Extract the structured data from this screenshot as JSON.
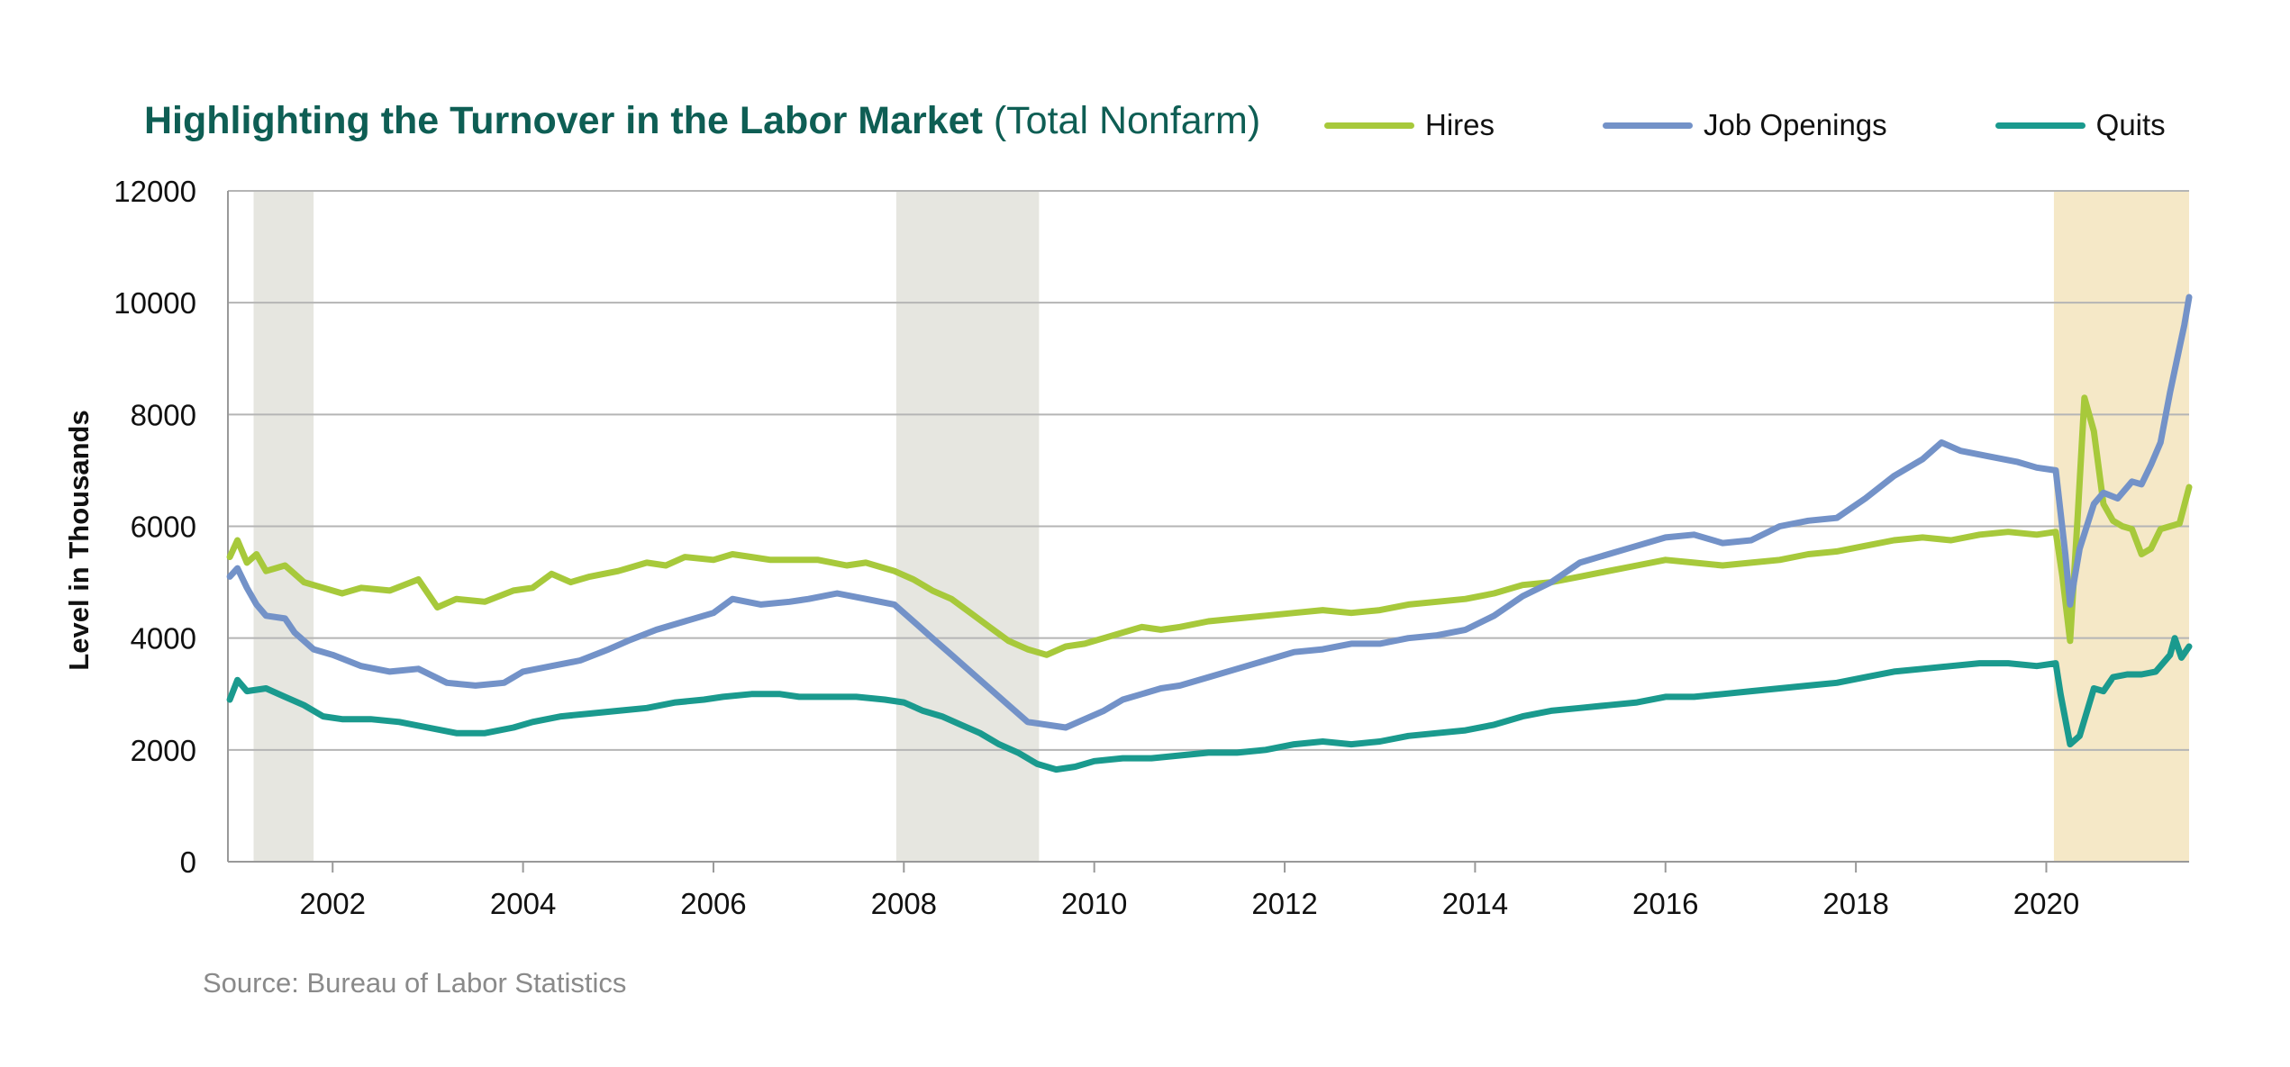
{
  "title": {
    "bold": "Highlighting the Turnover in the Labor Market",
    "normal": "(Total Nonfarm)"
  },
  "source": "Source: Bureau of Labor Statistics",
  "colors": {
    "hires": "#a7c93b",
    "job_openings": "#7392c8",
    "quits": "#1a9a8e",
    "recession_gray": "#e6e6e0",
    "covid_tan": "#f5e8c7",
    "grid": "#b5b5b5",
    "title": "#0e5e54"
  },
  "chart_data": {
    "type": "line",
    "title": "Highlighting the Turnover in the Labor Market (Total Nonfarm)",
    "xlabel": "",
    "ylabel": "Level in Thousands",
    "xlim": [
      2000.9,
      2021.5
    ],
    "ylim": [
      0,
      12000
    ],
    "x_ticks": [
      2002,
      2004,
      2006,
      2008,
      2010,
      2012,
      2014,
      2016,
      2018,
      2020
    ],
    "y_ticks": [
      0,
      2000,
      4000,
      6000,
      8000,
      10000,
      12000
    ],
    "grid": "horizontal",
    "legend_position": "top",
    "shaded_periods": [
      {
        "start": 2001.17,
        "end": 2001.8,
        "style": "recession_gray"
      },
      {
        "start": 2007.92,
        "end": 2009.42,
        "style": "recession_gray"
      },
      {
        "start": 2020.08,
        "end": 2021.5,
        "style": "covid_tan"
      }
    ],
    "series": [
      {
        "name": "Hires",
        "points": [
          [
            2000.92,
            5450
          ],
          [
            2001.0,
            5750
          ],
          [
            2001.1,
            5350
          ],
          [
            2001.2,
            5500
          ],
          [
            2001.3,
            5200
          ],
          [
            2001.5,
            5300
          ],
          [
            2001.7,
            5000
          ],
          [
            2001.9,
            4900
          ],
          [
            2002.1,
            4800
          ],
          [
            2002.3,
            4900
          ],
          [
            2002.6,
            4850
          ],
          [
            2002.9,
            5050
          ],
          [
            2003.1,
            4550
          ],
          [
            2003.3,
            4700
          ],
          [
            2003.6,
            4650
          ],
          [
            2003.9,
            4850
          ],
          [
            2004.1,
            4900
          ],
          [
            2004.3,
            5150
          ],
          [
            2004.5,
            5000
          ],
          [
            2004.7,
            5100
          ],
          [
            2005.0,
            5200
          ],
          [
            2005.3,
            5350
          ],
          [
            2005.5,
            5300
          ],
          [
            2005.7,
            5450
          ],
          [
            2006.0,
            5400
          ],
          [
            2006.2,
            5500
          ],
          [
            2006.4,
            5450
          ],
          [
            2006.6,
            5400
          ],
          [
            2006.9,
            5400
          ],
          [
            2007.1,
            5400
          ],
          [
            2007.4,
            5300
          ],
          [
            2007.6,
            5350
          ],
          [
            2007.9,
            5200
          ],
          [
            2008.1,
            5050
          ],
          [
            2008.3,
            4850
          ],
          [
            2008.5,
            4700
          ],
          [
            2008.7,
            4450
          ],
          [
            2008.9,
            4200
          ],
          [
            2009.1,
            3950
          ],
          [
            2009.3,
            3800
          ],
          [
            2009.5,
            3700
          ],
          [
            2009.7,
            3850
          ],
          [
            2009.9,
            3900
          ],
          [
            2010.1,
            4000
          ],
          [
            2010.3,
            4100
          ],
          [
            2010.5,
            4200
          ],
          [
            2010.7,
            4150
          ],
          [
            2010.9,
            4200
          ],
          [
            2011.2,
            4300
          ],
          [
            2011.5,
            4350
          ],
          [
            2011.8,
            4400
          ],
          [
            2012.1,
            4450
          ],
          [
            2012.4,
            4500
          ],
          [
            2012.7,
            4450
          ],
          [
            2013.0,
            4500
          ],
          [
            2013.3,
            4600
          ],
          [
            2013.6,
            4650
          ],
          [
            2013.9,
            4700
          ],
          [
            2014.2,
            4800
          ],
          [
            2014.5,
            4950
          ],
          [
            2014.8,
            5000
          ],
          [
            2015.1,
            5100
          ],
          [
            2015.4,
            5200
          ],
          [
            2015.7,
            5300
          ],
          [
            2016.0,
            5400
          ],
          [
            2016.3,
            5350
          ],
          [
            2016.6,
            5300
          ],
          [
            2016.9,
            5350
          ],
          [
            2017.2,
            5400
          ],
          [
            2017.5,
            5500
          ],
          [
            2017.8,
            5550
          ],
          [
            2018.1,
            5650
          ],
          [
            2018.4,
            5750
          ],
          [
            2018.7,
            5800
          ],
          [
            2019.0,
            5750
          ],
          [
            2019.3,
            5850
          ],
          [
            2019.6,
            5900
          ],
          [
            2019.9,
            5850
          ],
          [
            2020.1,
            5900
          ],
          [
            2020.17,
            5100
          ],
          [
            2020.25,
            3950
          ],
          [
            2020.33,
            6200
          ],
          [
            2020.4,
            8300
          ],
          [
            2020.5,
            7700
          ],
          [
            2020.6,
            6400
          ],
          [
            2020.7,
            6100
          ],
          [
            2020.8,
            6000
          ],
          [
            2020.9,
            5950
          ],
          [
            2021.0,
            5500
          ],
          [
            2021.1,
            5600
          ],
          [
            2021.2,
            5950
          ],
          [
            2021.3,
            6000
          ],
          [
            2021.4,
            6050
          ],
          [
            2021.5,
            6700
          ]
        ]
      },
      {
        "name": "Job Openings",
        "points": [
          [
            2000.92,
            5100
          ],
          [
            2001.0,
            5250
          ],
          [
            2001.1,
            4900
          ],
          [
            2001.2,
            4600
          ],
          [
            2001.3,
            4400
          ],
          [
            2001.5,
            4350
          ],
          [
            2001.6,
            4100
          ],
          [
            2001.8,
            3800
          ],
          [
            2002.0,
            3700
          ],
          [
            2002.3,
            3500
          ],
          [
            2002.6,
            3400
          ],
          [
            2002.9,
            3450
          ],
          [
            2003.2,
            3200
          ],
          [
            2003.5,
            3150
          ],
          [
            2003.8,
            3200
          ],
          [
            2004.0,
            3400
          ],
          [
            2004.3,
            3500
          ],
          [
            2004.6,
            3600
          ],
          [
            2004.9,
            3800
          ],
          [
            2005.1,
            3950
          ],
          [
            2005.4,
            4150
          ],
          [
            2005.7,
            4300
          ],
          [
            2006.0,
            4450
          ],
          [
            2006.2,
            4700
          ],
          [
            2006.5,
            4600
          ],
          [
            2006.8,
            4650
          ],
          [
            2007.0,
            4700
          ],
          [
            2007.3,
            4800
          ],
          [
            2007.6,
            4700
          ],
          [
            2007.9,
            4600
          ],
          [
            2008.1,
            4300
          ],
          [
            2008.3,
            4000
          ],
          [
            2008.5,
            3700
          ],
          [
            2008.7,
            3400
          ],
          [
            2008.9,
            3100
          ],
          [
            2009.1,
            2800
          ],
          [
            2009.3,
            2500
          ],
          [
            2009.5,
            2450
          ],
          [
            2009.7,
            2400
          ],
          [
            2009.9,
            2550
          ],
          [
            2010.1,
            2700
          ],
          [
            2010.3,
            2900
          ],
          [
            2010.5,
            3000
          ],
          [
            2010.7,
            3100
          ],
          [
            2010.9,
            3150
          ],
          [
            2011.2,
            3300
          ],
          [
            2011.5,
            3450
          ],
          [
            2011.8,
            3600
          ],
          [
            2012.1,
            3750
          ],
          [
            2012.4,
            3800
          ],
          [
            2012.7,
            3900
          ],
          [
            2013.0,
            3900
          ],
          [
            2013.3,
            4000
          ],
          [
            2013.6,
            4050
          ],
          [
            2013.9,
            4150
          ],
          [
            2014.2,
            4400
          ],
          [
            2014.5,
            4750
          ],
          [
            2014.8,
            5000
          ],
          [
            2015.1,
            5350
          ],
          [
            2015.4,
            5500
          ],
          [
            2015.7,
            5650
          ],
          [
            2016.0,
            5800
          ],
          [
            2016.3,
            5850
          ],
          [
            2016.6,
            5700
          ],
          [
            2016.9,
            5750
          ],
          [
            2017.2,
            6000
          ],
          [
            2017.5,
            6100
          ],
          [
            2017.8,
            6150
          ],
          [
            2018.1,
            6500
          ],
          [
            2018.4,
            6900
          ],
          [
            2018.7,
            7200
          ],
          [
            2018.9,
            7500
          ],
          [
            2019.1,
            7350
          ],
          [
            2019.4,
            7250
          ],
          [
            2019.7,
            7150
          ],
          [
            2019.9,
            7050
          ],
          [
            2020.1,
            7000
          ],
          [
            2020.2,
            5500
          ],
          [
            2020.25,
            4600
          ],
          [
            2020.35,
            5600
          ],
          [
            2020.5,
            6400
          ],
          [
            2020.6,
            6600
          ],
          [
            2020.75,
            6500
          ],
          [
            2020.9,
            6800
          ],
          [
            2021.0,
            6750
          ],
          [
            2021.1,
            7100
          ],
          [
            2021.2,
            7500
          ],
          [
            2021.3,
            8400
          ],
          [
            2021.4,
            9200
          ],
          [
            2021.45,
            9600
          ],
          [
            2021.5,
            10100
          ]
        ]
      },
      {
        "name": "Quits",
        "points": [
          [
            2000.92,
            2900
          ],
          [
            2001.0,
            3250
          ],
          [
            2001.1,
            3050
          ],
          [
            2001.3,
            3100
          ],
          [
            2001.5,
            2950
          ],
          [
            2001.7,
            2800
          ],
          [
            2001.9,
            2600
          ],
          [
            2002.1,
            2550
          ],
          [
            2002.4,
            2550
          ],
          [
            2002.7,
            2500
          ],
          [
            2003.0,
            2400
          ],
          [
            2003.3,
            2300
          ],
          [
            2003.6,
            2300
          ],
          [
            2003.9,
            2400
          ],
          [
            2004.1,
            2500
          ],
          [
            2004.4,
            2600
          ],
          [
            2004.7,
            2650
          ],
          [
            2005.0,
            2700
          ],
          [
            2005.3,
            2750
          ],
          [
            2005.6,
            2850
          ],
          [
            2005.9,
            2900
          ],
          [
            2006.1,
            2950
          ],
          [
            2006.4,
            3000
          ],
          [
            2006.7,
            3000
          ],
          [
            2006.9,
            2950
          ],
          [
            2007.2,
            2950
          ],
          [
            2007.5,
            2950
          ],
          [
            2007.8,
            2900
          ],
          [
            2008.0,
            2850
          ],
          [
            2008.2,
            2700
          ],
          [
            2008.4,
            2600
          ],
          [
            2008.6,
            2450
          ],
          [
            2008.8,
            2300
          ],
          [
            2009.0,
            2100
          ],
          [
            2009.2,
            1950
          ],
          [
            2009.4,
            1750
          ],
          [
            2009.6,
            1650
          ],
          [
            2009.8,
            1700
          ],
          [
            2010.0,
            1800
          ],
          [
            2010.3,
            1850
          ],
          [
            2010.6,
            1850
          ],
          [
            2010.9,
            1900
          ],
          [
            2011.2,
            1950
          ],
          [
            2011.5,
            1950
          ],
          [
            2011.8,
            2000
          ],
          [
            2012.1,
            2100
          ],
          [
            2012.4,
            2150
          ],
          [
            2012.7,
            2100
          ],
          [
            2013.0,
            2150
          ],
          [
            2013.3,
            2250
          ],
          [
            2013.6,
            2300
          ],
          [
            2013.9,
            2350
          ],
          [
            2014.2,
            2450
          ],
          [
            2014.5,
            2600
          ],
          [
            2014.8,
            2700
          ],
          [
            2015.1,
            2750
          ],
          [
            2015.4,
            2800
          ],
          [
            2015.7,
            2850
          ],
          [
            2016.0,
            2950
          ],
          [
            2016.3,
            2950
          ],
          [
            2016.6,
            3000
          ],
          [
            2016.9,
            3050
          ],
          [
            2017.2,
            3100
          ],
          [
            2017.5,
            3150
          ],
          [
            2017.8,
            3200
          ],
          [
            2018.1,
            3300
          ],
          [
            2018.4,
            3400
          ],
          [
            2018.7,
            3450
          ],
          [
            2019.0,
            3500
          ],
          [
            2019.3,
            3550
          ],
          [
            2019.6,
            3550
          ],
          [
            2019.9,
            3500
          ],
          [
            2020.1,
            3550
          ],
          [
            2020.15,
            3000
          ],
          [
            2020.25,
            2100
          ],
          [
            2020.35,
            2250
          ],
          [
            2020.5,
            3100
          ],
          [
            2020.6,
            3050
          ],
          [
            2020.7,
            3300
          ],
          [
            2020.85,
            3350
          ],
          [
            2021.0,
            3350
          ],
          [
            2021.15,
            3400
          ],
          [
            2021.3,
            3700
          ],
          [
            2021.35,
            4000
          ],
          [
            2021.42,
            3650
          ],
          [
            2021.5,
            3850
          ]
        ]
      }
    ]
  }
}
